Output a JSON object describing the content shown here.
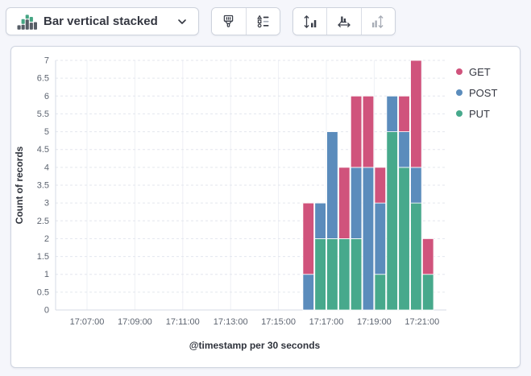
{
  "toolbar": {
    "chart_type_label": "Bar vertical stacked",
    "chart_type_icon": "bar-vertical-stacked-icon",
    "buttons": [
      {
        "name": "appearance-options",
        "icon": "paintbrush-icon",
        "disabled": false
      },
      {
        "name": "legend-options",
        "icon": "legend-options-icon",
        "disabled": false
      },
      {
        "name": "fit-y-axis",
        "icon": "expand-vertical-axis-icon",
        "disabled": false
      },
      {
        "name": "fit-x-axis",
        "icon": "expand-horizontal-axis-icon",
        "disabled": false
      },
      {
        "name": "fit-bars",
        "icon": "collapse-vertical-axis-icon",
        "disabled": true
      }
    ]
  },
  "chart_data": {
    "type": "bar",
    "stacked": true,
    "orientation": "vertical",
    "ylabel": "Count of records",
    "xlabel": "@timestamp per 30 seconds",
    "ylim": [
      0,
      7
    ],
    "y_tick_step": 0.5,
    "grid": true,
    "legend_position": "top-right",
    "x_axis_ticks": [
      "17:07:00",
      "17:09:00",
      "17:11:00",
      "17:13:00",
      "17:15:00",
      "17:17:00",
      "17:19:00",
      "17:21:00"
    ],
    "categories": [
      "17:16:00",
      "17:16:30",
      "17:17:00",
      "17:17:30",
      "17:18:00",
      "17:18:30",
      "17:19:00",
      "17:19:30",
      "17:20:00",
      "17:20:30",
      "17:21:00"
    ],
    "bucket_interval_seconds": 30,
    "stack_order_bottom_to_top": [
      "PUT",
      "POST",
      "GET"
    ],
    "series": [
      {
        "name": "GET",
        "color": "#d0537c",
        "values": [
          2,
          0,
          0,
          2,
          2,
          2,
          1,
          0,
          1,
          3,
          1
        ]
      },
      {
        "name": "POST",
        "color": "#5b8cbc",
        "values": [
          1,
          1,
          3,
          0,
          2,
          4,
          2,
          1,
          1,
          1,
          0
        ]
      },
      {
        "name": "PUT",
        "color": "#47a98c",
        "values": [
          0,
          2,
          2,
          2,
          2,
          0,
          1,
          5,
          4,
          3,
          1
        ]
      }
    ],
    "stack_totals": [
      3,
      3,
      5,
      4,
      6,
      6,
      4,
      6,
      6,
      7,
      2
    ]
  },
  "colors": {
    "panel_border": "#cfd5e0",
    "page_background": "#f5f6fb",
    "icon_green": "#45a583",
    "icon_gray": "#565d66"
  }
}
